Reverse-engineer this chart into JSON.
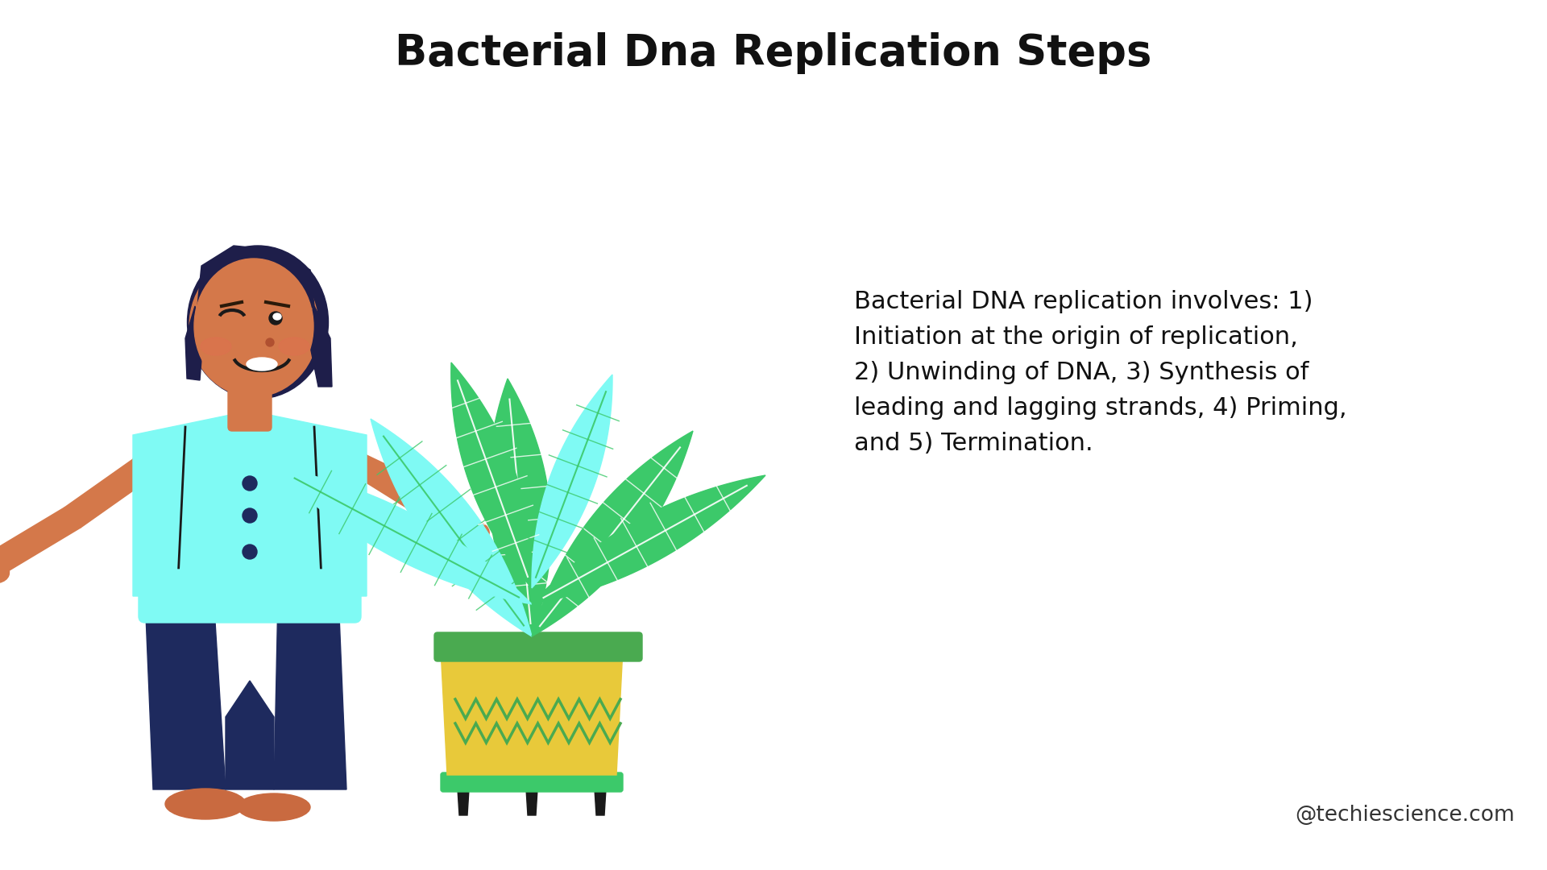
{
  "title": "Bacterial Dna Replication Steps",
  "description": "Bacterial DNA replication involves: 1)\nInitiation at the origin of replication,\n2) Unwinding of DNA, 3) Synthesis of\nleading and lagging strands, 4) Priming,\nand 5) Termination.",
  "watermark": "@techiescience.com",
  "background_color": "#ffffff",
  "title_fontsize": 38,
  "desc_fontsize": 22,
  "watermark_fontsize": 19,
  "skin_color": "#D4784A",
  "hair_color": "#1E1E4A",
  "shirt_color": "#7FFAF4",
  "pants_color": "#1E2A5E",
  "shoe_color": "#C96A40",
  "leaf_green": "#3CC96A",
  "leaf_cyan": "#7FFAF4",
  "leaf_vein_green": "#ffffff",
  "leaf_vein_cyan": "#3CC96A",
  "pot_yellow": "#E8C93A",
  "pot_zigzag": "#4AAA50",
  "stand_green": "#3CC96A",
  "stand_line": "#1a1a1a",
  "pointer_color": "#2a2a5a",
  "button_color": "#1E2A5E",
  "shirt_line": "#1a1a1a"
}
